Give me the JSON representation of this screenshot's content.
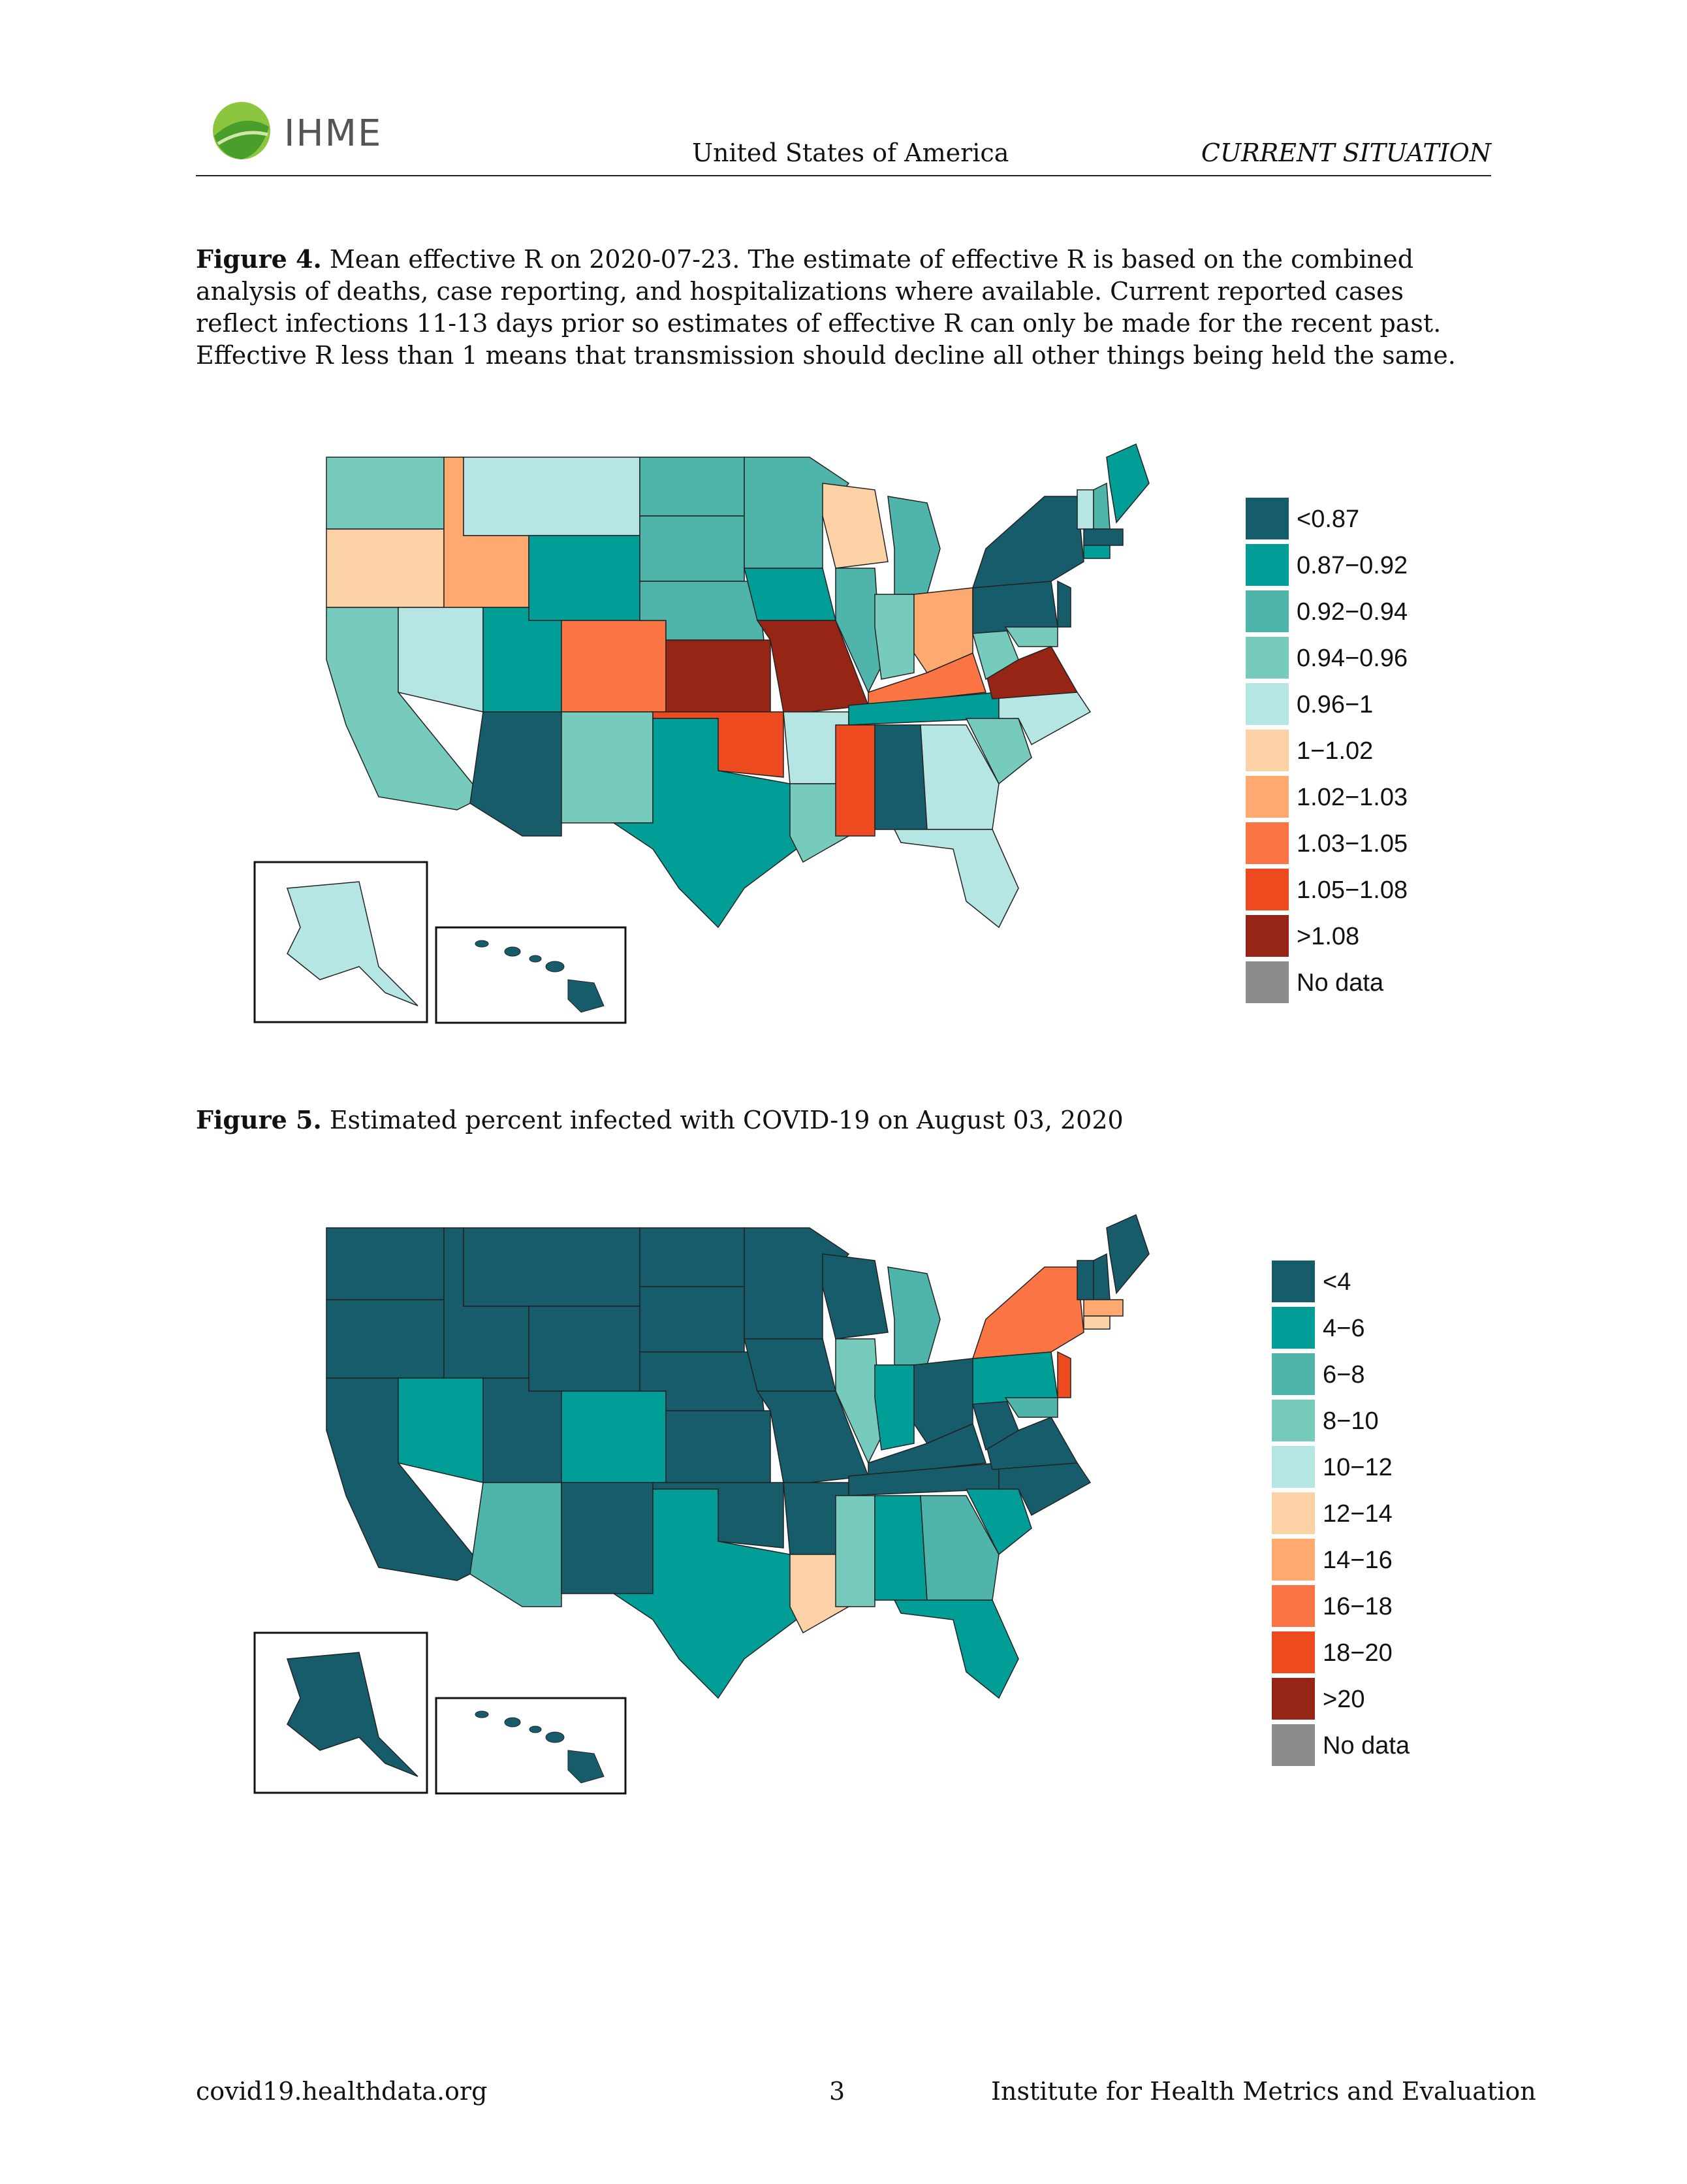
{
  "header": {
    "logo_text": "IHME",
    "center": "United States of America",
    "right": "CURRENT SITUATION"
  },
  "figure4": {
    "label": "Figure 4.",
    "caption": "Mean effective R on 2020-07-23. The estimate of effective R is based on the combined analysis of deaths, case reporting, and hospitalizations where available. Current reported cases reflect infections 11-13 days prior so estimates of effective R can only be made for the recent past. Effective R less than 1 means that transmission should decline all other things being held the same.",
    "legend": [
      {
        "label": "<0.87",
        "color": "#165c6b"
      },
      {
        "label": "0.87−0.92",
        "color": "#009e96"
      },
      {
        "label": "0.92−0.94",
        "color": "#4fb5ab"
      },
      {
        "label": "0.94−0.96",
        "color": "#77cbbd"
      },
      {
        "label": "0.96−1",
        "color": "#b6e6e3"
      },
      {
        "label": "1−1.02",
        "color": "#fdd1a6"
      },
      {
        "label": "1.02−1.03",
        "color": "#fda970"
      },
      {
        "label": "1.03−1.05",
        "color": "#fb7544"
      },
      {
        "label": "1.05−1.08",
        "color": "#ee4a1f"
      },
      {
        "label": ">1.08",
        "color": "#962516"
      },
      {
        "label": "No data",
        "color": "#8c8c8c"
      }
    ]
  },
  "figure5": {
    "label": "Figure 5.",
    "caption": "Estimated percent infected with COVID-19 on August 03, 2020",
    "legend": [
      {
        "label": "<4",
        "color": "#165c6b"
      },
      {
        "label": "4−6",
        "color": "#009e96"
      },
      {
        "label": "6−8",
        "color": "#4fb5ab"
      },
      {
        "label": "8−10",
        "color": "#77cbbd"
      },
      {
        "label": "10−12",
        "color": "#b6e6e3"
      },
      {
        "label": "12−14",
        "color": "#fdd1a6"
      },
      {
        "label": "14−16",
        "color": "#fda970"
      },
      {
        "label": "16−18",
        "color": "#fb7544"
      },
      {
        "label": "18−20",
        "color": "#ee4a1f"
      },
      {
        "label": ">20",
        "color": "#962516"
      },
      {
        "label": "No data",
        "color": "#8c8c8c"
      }
    ]
  },
  "footer": {
    "left": "covid19.healthdata.org",
    "center": "3",
    "right": "Institute for Health Metrics and Evaluation"
  }
}
